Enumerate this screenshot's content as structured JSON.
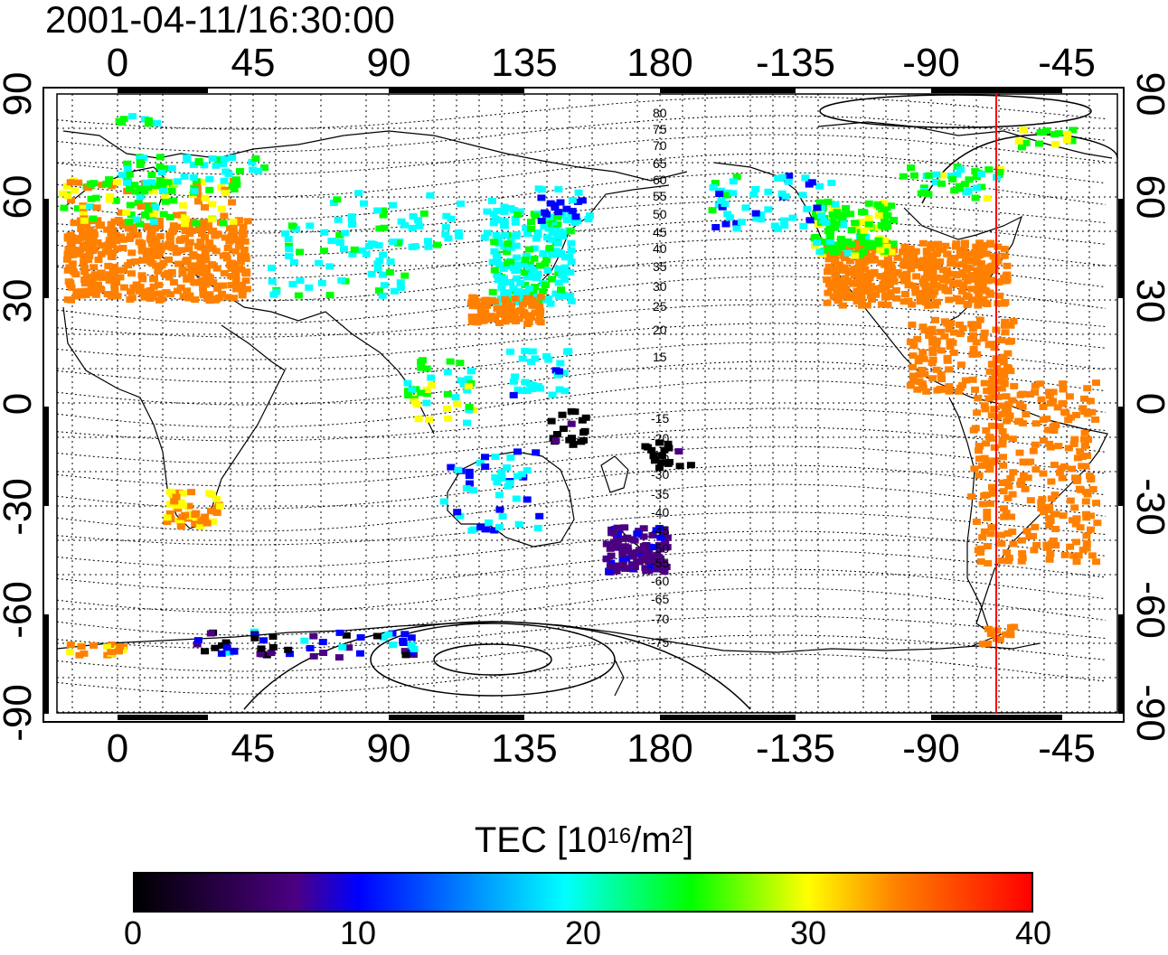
{
  "title": "2001-04-11/16:30:00",
  "map": {
    "lon_ticks": [
      "0",
      "45",
      "90",
      "135",
      "180",
      "-135",
      "-90",
      "-45"
    ],
    "lat_ticks": [
      "90",
      "60",
      "30",
      "0",
      "-30",
      "-60",
      "-90"
    ],
    "contour_labels_north": [
      "80",
      "75",
      "70",
      "65",
      "60",
      "55",
      "50",
      "45",
      "40",
      "35",
      "30",
      "25",
      "20",
      "15"
    ],
    "contour_labels_south": [
      "-15",
      "-20",
      "-25",
      "-30",
      "-35",
      "-40",
      "-45",
      "-50",
      "-55",
      "-60",
      "-65",
      "-70",
      "-75"
    ],
    "marker_line_color": "#ff0000"
  },
  "colorbar": {
    "label_main": "TEC  [10",
    "label_exp": "16",
    "label_unit": "/m",
    "label_exp2": "2",
    "label_close": "]",
    "min": 0,
    "max": 40,
    "ticks": [
      "0",
      "10",
      "20",
      "30",
      "40"
    ],
    "colors": [
      "#000000",
      "#4b0082",
      "#0000ff",
      "#00ffff",
      "#00ff00",
      "#ffff00",
      "#ff8000",
      "#ff0000"
    ]
  }
}
